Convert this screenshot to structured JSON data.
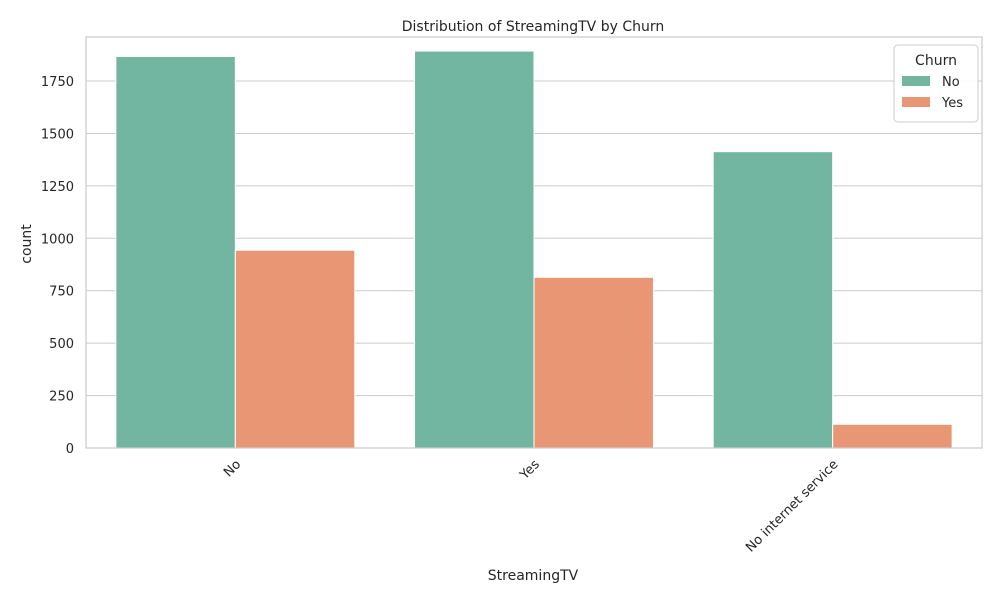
{
  "chart_data": {
    "type": "bar",
    "title": "Distribution of StreamingTV by Churn",
    "xlabel": "StreamingTV",
    "ylabel": "count",
    "categories": [
      "No",
      "Yes",
      "No internet service"
    ],
    "series": [
      {
        "name": "No",
        "values": [
          1867,
          1893,
          1413
        ],
        "color": "#72b6a1"
      },
      {
        "name": "Yes",
        "values": [
          943,
          814,
          113
        ],
        "color": "#e99675"
      }
    ],
    "ylim": [
      0,
      1960
    ],
    "yticks": [
      0,
      250,
      500,
      750,
      1000,
      1250,
      1500,
      1750
    ],
    "grid": true,
    "legend": {
      "title": "Churn",
      "position": "top-right"
    },
    "colors": {
      "grid": "#cccccc",
      "axes_edge": "#cccccc"
    }
  }
}
